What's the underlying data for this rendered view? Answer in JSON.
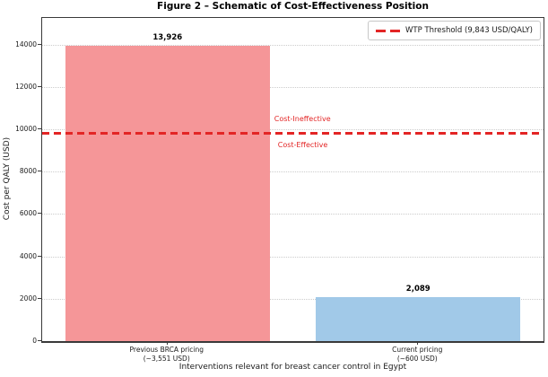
{
  "figure": {
    "title": "Figure 2 – Schematic of Cost-Effectiveness Position"
  },
  "chart_data": {
    "type": "bar",
    "title": "Figure 2 – Schematic of Cost-Effectiveness Position",
    "categories": [
      "Previous BRCA pricing\n(~3,551 USD)",
      "Current pricing\n(~600 USD)"
    ],
    "values": [
      13926,
      2089
    ],
    "value_labels": [
      "13,926",
      "2,089"
    ],
    "bar_colors": [
      "#f59698",
      "#a1c9e8"
    ],
    "xlabel": "Interventions relevant for breast cancer control in Egypt",
    "ylabel": "Cost per QALY (USD)",
    "y_ticks": [
      0,
      2000,
      4000,
      6000,
      8000,
      10000,
      12000,
      14000
    ],
    "ylim": [
      0,
      15250
    ],
    "grid": {
      "axis": "y",
      "style": "dotted",
      "color": "#cccccc"
    },
    "legend_position": "upper right",
    "threshold": {
      "value": 9843,
      "label": "WTP Threshold (9,843 USD/QALY)",
      "color": "#e32525",
      "style": "dashed"
    },
    "annotations": [
      {
        "text": "Cost-Ineffective",
        "color": "#e32525",
        "position": "above-threshold"
      },
      {
        "text": "Cost-Effective",
        "color": "#e32525",
        "position": "below-threshold"
      }
    ]
  }
}
